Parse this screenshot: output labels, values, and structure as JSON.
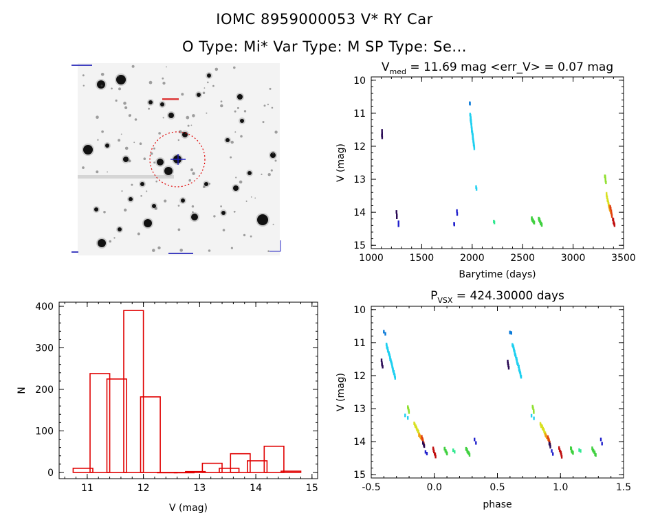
{
  "header": {
    "line1": "IOMC 8959000053   V* RY Car",
    "line2": "O Type: Mi*  Var Type: M   SP Type: Se..."
  },
  "colors": {
    "histogram": "#e00000",
    "palette": [
      "#2a0a55",
      "#2020cc",
      "#0a7ad8",
      "#20d0f0",
      "#30e890",
      "#40d040",
      "#90e030",
      "#d8e020",
      "#f0a010",
      "#e04010",
      "#c01010"
    ]
  },
  "chart_data": [
    {
      "type": "image",
      "title": "",
      "description_free": true,
      "marker": {
        "circle": "red-dotted",
        "cross": "blue"
      }
    },
    {
      "type": "scatter",
      "title_parts": {
        "prefix": "V",
        "sub": "med",
        "rest": " = 11.69 mag <err_V> = 0.07 mag"
      },
      "xlabel": "Barytime (days)",
      "ylabel": "V (mag)",
      "xlim": [
        1000,
        3500
      ],
      "ylim": [
        15,
        10
      ],
      "xticks": [
        1000,
        1500,
        2000,
        2500,
        3000,
        3500
      ],
      "yticks": [
        10,
        11,
        12,
        13,
        14,
        15
      ],
      "groups": [
        {
          "x0": 1105,
          "x1": 1108,
          "y0": 11.55,
          "y1": 11.75,
          "c": 0,
          "n": 4
        },
        {
          "x0": 1250,
          "x1": 1253,
          "y0": 14.0,
          "y1": 14.15,
          "c": 0,
          "n": 3
        },
        {
          "x0": 1270,
          "x1": 1272,
          "y0": 14.3,
          "y1": 14.38,
          "c": 1,
          "n": 2
        },
        {
          "x0": 1820,
          "x1": 1822,
          "y0": 14.33,
          "y1": 14.38,
          "c": 1,
          "n": 2
        },
        {
          "x0": 1850,
          "x1": 1852,
          "y0": 13.95,
          "y1": 14.05,
          "c": 1,
          "n": 2
        },
        {
          "x0": 1975,
          "x1": 1978,
          "y0": 10.68,
          "y1": 10.72,
          "c": 2,
          "n": 2
        },
        {
          "x0": 1980,
          "x1": 2020,
          "y0": 11.05,
          "y1": 12.05,
          "c": 3,
          "n": 30
        },
        {
          "x0": 2040,
          "x1": 2042,
          "y0": 13.25,
          "y1": 13.3,
          "c": 3,
          "n": 2
        },
        {
          "x0": 2215,
          "x1": 2218,
          "y0": 14.27,
          "y1": 14.3,
          "c": 4,
          "n": 2
        },
        {
          "x0": 2590,
          "x1": 2615,
          "y0": 14.18,
          "y1": 14.32,
          "c": 5,
          "n": 10
        },
        {
          "x0": 2660,
          "x1": 2690,
          "y0": 14.18,
          "y1": 14.4,
          "c": 5,
          "n": 10
        },
        {
          "x0": 3315,
          "x1": 3325,
          "y0": 12.9,
          "y1": 13.08,
          "c": 6,
          "n": 6
        },
        {
          "x0": 3330,
          "x1": 3355,
          "y0": 13.45,
          "y1": 13.8,
          "c": 7,
          "n": 10
        },
        {
          "x0": 3355,
          "x1": 3375,
          "y0": 13.8,
          "y1": 14.0,
          "c": 8,
          "n": 8
        },
        {
          "x0": 3370,
          "x1": 3385,
          "y0": 13.85,
          "y1": 14.1,
          "c": 9,
          "n": 6
        },
        {
          "x0": 3395,
          "x1": 3410,
          "y0": 14.2,
          "y1": 14.4,
          "c": 10,
          "n": 6
        }
      ]
    },
    {
      "type": "bar",
      "title": "",
      "xlabel": "V (mag)",
      "ylabel": "N",
      "xlim": [
        10.5,
        15.1
      ],
      "ylim": [
        -15,
        410
      ],
      "xticks": [
        11,
        12,
        13,
        14,
        15
      ],
      "yticks": [
        0,
        100,
        200,
        300,
        400
      ],
      "bin_width": 0.35,
      "bins": [
        {
          "left": 10.75,
          "value": 10
        },
        {
          "left": 11.05,
          "value": 238
        },
        {
          "left": 11.35,
          "value": 225
        },
        {
          "left": 11.65,
          "value": 390
        },
        {
          "left": 11.95,
          "value": 182
        },
        {
          "left": 12.25,
          "value": 0
        },
        {
          "left": 12.55,
          "value": 0
        },
        {
          "left": 12.75,
          "value": 2
        },
        {
          "left": 13.05,
          "value": 22
        },
        {
          "left": 13.35,
          "value": 10
        },
        {
          "left": 13.55,
          "value": 45
        },
        {
          "left": 13.85,
          "value": 28
        },
        {
          "left": 14.15,
          "value": 63
        },
        {
          "left": 14.45,
          "value": 3
        }
      ]
    },
    {
      "type": "scatter",
      "title_parts": {
        "prefix": "P",
        "sub": "VSX",
        "rest": " = 424.30000 days"
      },
      "xlabel": "phase",
      "ylabel": "V (mag)",
      "xlim": [
        -0.5,
        1.5
      ],
      "ylim": [
        15,
        10
      ],
      "xticks": [
        -0.5,
        0.0,
        0.5,
        1.0,
        1.5
      ],
      "xticklabels": [
        "-0.5",
        "0.0",
        "0.5",
        "1.0",
        "1.5"
      ],
      "yticks": [
        10,
        11,
        12,
        13,
        14,
        15
      ],
      "groups": [
        {
          "x0": -0.42,
          "x1": -0.41,
          "y0": 11.55,
          "y1": 11.75,
          "c": 0,
          "n": 4
        },
        {
          "x0": -0.4,
          "x1": -0.39,
          "y0": 10.68,
          "y1": 10.72,
          "c": 2,
          "n": 2
        },
        {
          "x0": -0.38,
          "x1": -0.31,
          "y0": 11.05,
          "y1": 12.05,
          "c": 3,
          "n": 30
        },
        {
          "x0": -0.23,
          "x1": -0.21,
          "y0": 13.22,
          "y1": 13.28,
          "c": 3,
          "n": 2
        },
        {
          "x0": -0.21,
          "x1": -0.2,
          "y0": 12.95,
          "y1": 13.1,
          "c": 6,
          "n": 4
        },
        {
          "x0": -0.16,
          "x1": -0.12,
          "y0": 13.45,
          "y1": 13.75,
          "c": 7,
          "n": 10
        },
        {
          "x0": -0.12,
          "x1": -0.09,
          "y0": 13.8,
          "y1": 13.95,
          "c": 8,
          "n": 8
        },
        {
          "x0": -0.1,
          "x1": -0.08,
          "y0": 13.85,
          "y1": 14.1,
          "c": 9,
          "n": 6
        },
        {
          "x0": -0.09,
          "x1": -0.08,
          "y0": 14.05,
          "y1": 14.15,
          "c": 0,
          "n": 3
        },
        {
          "x0": -0.07,
          "x1": -0.06,
          "y0": 14.3,
          "y1": 14.38,
          "c": 1,
          "n": 2
        },
        {
          "x0": -0.01,
          "x1": 0.01,
          "y0": 14.2,
          "y1": 14.45,
          "c": 10,
          "n": 6
        },
        {
          "x0": 0.08,
          "x1": 0.1,
          "y0": 14.2,
          "y1": 14.35,
          "c": 5,
          "n": 6
        },
        {
          "x0": 0.15,
          "x1": 0.16,
          "y0": 14.25,
          "y1": 14.3,
          "c": 4,
          "n": 2
        },
        {
          "x0": 0.25,
          "x1": 0.28,
          "y0": 14.2,
          "y1": 14.4,
          "c": 5,
          "n": 8
        },
        {
          "x0": 0.32,
          "x1": 0.33,
          "y0": 13.95,
          "y1": 14.05,
          "c": 1,
          "n": 2
        },
        {
          "x0": 0.58,
          "x1": 0.59,
          "y0": 11.55,
          "y1": 11.75,
          "c": 0,
          "n": 4
        },
        {
          "x0": 0.6,
          "x1": 0.61,
          "y0": 10.68,
          "y1": 10.72,
          "c": 2,
          "n": 2
        },
        {
          "x0": 0.62,
          "x1": 0.69,
          "y0": 11.05,
          "y1": 12.05,
          "c": 3,
          "n": 30
        },
        {
          "x0": 0.77,
          "x1": 0.79,
          "y0": 13.22,
          "y1": 13.28,
          "c": 3,
          "n": 2
        },
        {
          "x0": 0.78,
          "x1": 0.79,
          "y0": 12.95,
          "y1": 13.1,
          "c": 6,
          "n": 4
        },
        {
          "x0": 0.84,
          "x1": 0.88,
          "y0": 13.45,
          "y1": 13.75,
          "c": 7,
          "n": 10
        },
        {
          "x0": 0.88,
          "x1": 0.91,
          "y0": 13.8,
          "y1": 13.95,
          "c": 8,
          "n": 8
        },
        {
          "x0": 0.9,
          "x1": 0.92,
          "y0": 13.85,
          "y1": 14.1,
          "c": 9,
          "n": 6
        },
        {
          "x0": 0.91,
          "x1": 0.92,
          "y0": 14.05,
          "y1": 14.15,
          "c": 0,
          "n": 3
        },
        {
          "x0": 0.93,
          "x1": 0.94,
          "y0": 14.3,
          "y1": 14.38,
          "c": 1,
          "n": 2
        },
        {
          "x0": 0.99,
          "x1": 1.01,
          "y0": 14.2,
          "y1": 14.45,
          "c": 10,
          "n": 6
        },
        {
          "x0": 1.08,
          "x1": 1.1,
          "y0": 14.2,
          "y1": 14.35,
          "c": 5,
          "n": 6
        },
        {
          "x0": 1.15,
          "x1": 1.16,
          "y0": 14.25,
          "y1": 14.3,
          "c": 4,
          "n": 2
        },
        {
          "x0": 1.25,
          "x1": 1.28,
          "y0": 14.2,
          "y1": 14.4,
          "c": 5,
          "n": 8
        },
        {
          "x0": 1.32,
          "x1": 1.33,
          "y0": 13.95,
          "y1": 14.05,
          "c": 1,
          "n": 2
        }
      ]
    }
  ]
}
